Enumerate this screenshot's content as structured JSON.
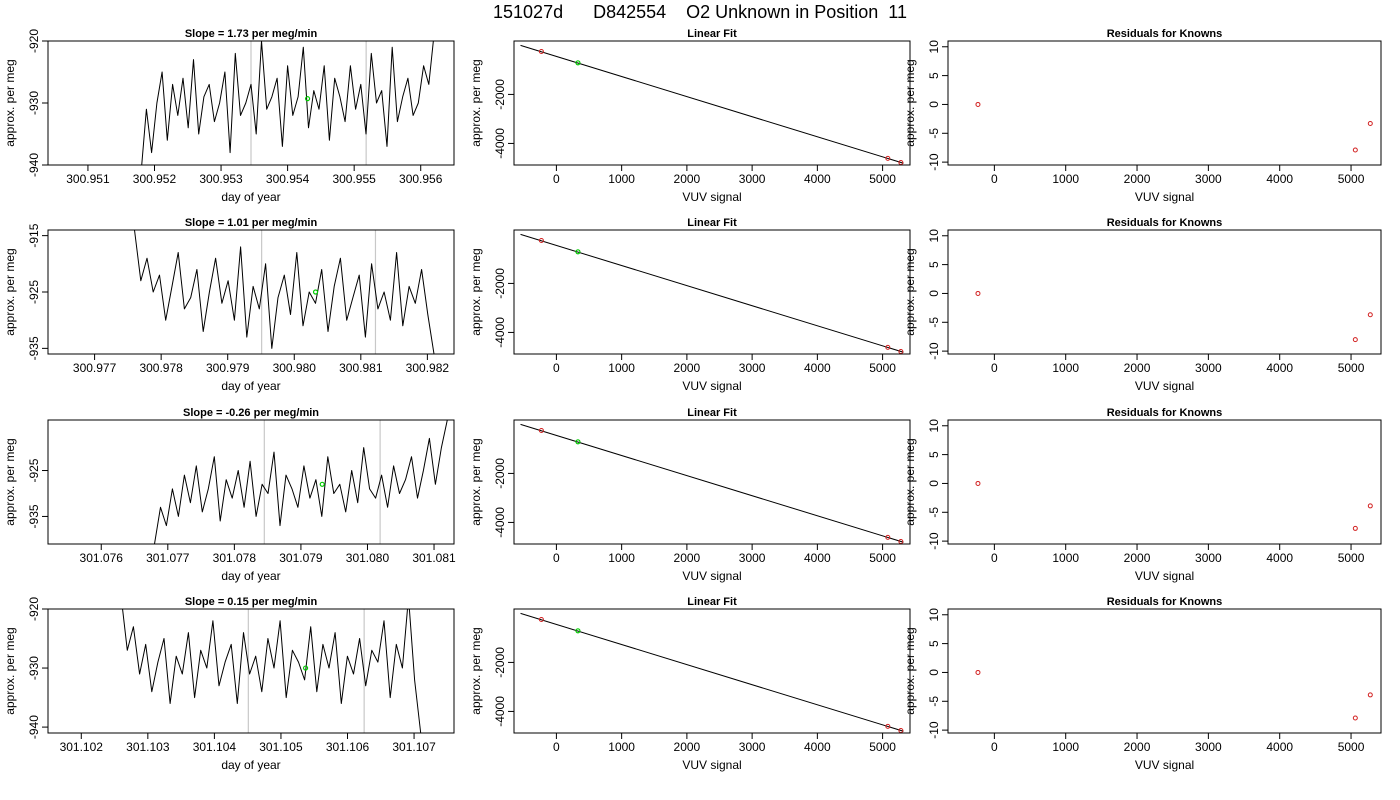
{
  "main_title": "151027d      D842554    O2 Unknown in Position  11",
  "chart_data": [
    {
      "type": "line",
      "title": "Slope =  1.73  per meg/min",
      "xlabel": "day of year",
      "ylabel": "approx. per meg",
      "xlim": [
        300.9504,
        300.9565
      ],
      "ylim": [
        -940,
        -920
      ],
      "xticks": [
        "300.951",
        "300.952",
        "300.953",
        "300.954",
        "300.955",
        "300.956"
      ],
      "yticks": [
        "-940",
        "-930",
        "-920"
      ],
      "vlines": [
        300.95345,
        300.95518
      ],
      "highlight": {
        "x": 300.9543,
        "y": -929.3,
        "color": "#00cc00"
      },
      "series": [
        {
          "x_start": 300.9518,
          "x_end": 300.9562,
          "values": [
            -941,
            -931,
            -938,
            -930,
            -925,
            -936,
            -927,
            -932,
            -926,
            -934,
            -923,
            -935,
            -929,
            -927,
            -933,
            -930,
            -925,
            -938,
            -922,
            -932,
            -930,
            -927,
            -935,
            -920,
            -931,
            -929,
            -926,
            -937,
            -924,
            -932,
            -929,
            -921,
            -934,
            -928,
            -931,
            -924,
            -936,
            -926,
            -929,
            -933,
            -924,
            -931,
            -927,
            -935,
            -922,
            -930,
            -928,
            -937,
            -921,
            -933,
            -929,
            -926,
            -932,
            -930,
            -924,
            -927,
            -919
          ]
        }
      ]
    },
    {
      "type": "scatter",
      "title": "Linear Fit",
      "xlabel": "VUV signal",
      "ylabel": "approx. per meg",
      "xlim": [
        -650,
        5420
      ],
      "ylim": [
        -4880,
        180
      ],
      "xticks": [
        "0",
        "1000",
        "2000",
        "3000",
        "4000",
        "5000"
      ],
      "yticks": [
        "-2000",
        "-4000"
      ],
      "points_x": [
        -230,
        5080,
        5280
      ],
      "points_y": [
        -250,
        -4610,
        -4780
      ],
      "unknown": {
        "x": 330,
        "y": -710
      },
      "line": {
        "x1": -550,
        "y1": 0,
        "x2": 5320,
        "y2": -4810
      }
    },
    {
      "type": "scatter",
      "title": "Residuals for Knowns",
      "xlabel": "VUV signal",
      "ylabel": "approx. per meg",
      "xlim": [
        -650,
        5420
      ],
      "ylim": [
        -10.5,
        11
      ],
      "xticks": [
        "0",
        "1000",
        "2000",
        "3000",
        "4000",
        "5000"
      ],
      "yticks": [
        "-10",
        "-5",
        "0",
        "5",
        "10"
      ],
      "points_x": [
        -230,
        5060,
        5270
      ],
      "points_y": [
        0,
        -7.9,
        -3.3
      ]
    },
    {
      "type": "line",
      "title": "Slope =  1.01  per meg/min",
      "xlabel": "day of year",
      "ylabel": "approx. per meg",
      "xlim": [
        300.9763,
        300.9824
      ],
      "ylim": [
        -936,
        -914
      ],
      "xticks": [
        "300.977",
        "300.978",
        "300.979",
        "300.980",
        "300.981",
        "300.982"
      ],
      "yticks": [
        "-935",
        "-925",
        "-915"
      ],
      "vlines": [
        300.97951,
        300.98122
      ],
      "highlight": {
        "x": 300.98032,
        "y": -925,
        "color": "#00cc00"
      },
      "series": [
        {
          "x_start": 300.9776,
          "x_end": 300.9821,
          "values": [
            -914,
            -923,
            -919,
            -925,
            -922,
            -930,
            -924,
            -918,
            -928,
            -926,
            -921,
            -932,
            -925,
            -919,
            -927,
            -923,
            -930,
            -917,
            -933,
            -924,
            -928,
            -920,
            -935,
            -926,
            -922,
            -929,
            -918,
            -931,
            -925,
            -927,
            -921,
            -932,
            -924,
            -919,
            -930,
            -926,
            -922,
            -933,
            -920,
            -928,
            -925,
            -930,
            -918,
            -931,
            -924,
            -927,
            -921,
            -929,
            -936
          ]
        }
      ]
    },
    {
      "type": "scatter",
      "title": "Linear Fit",
      "xlabel": "VUV signal",
      "ylabel": "approx. per meg",
      "xlim": [
        -650,
        5420
      ],
      "ylim": [
        -4880,
        180
      ],
      "xticks": [
        "0",
        "1000",
        "2000",
        "3000",
        "4000",
        "5000"
      ],
      "yticks": [
        "-2000",
        "-4000"
      ],
      "points_x": [
        -230,
        5080,
        5280
      ],
      "points_y": [
        -250,
        -4610,
        -4780
      ],
      "unknown": {
        "x": 330,
        "y": -710
      },
      "line": {
        "x1": -550,
        "y1": 0,
        "x2": 5320,
        "y2": -4810
      }
    },
    {
      "type": "scatter",
      "title": "Residuals for Knowns",
      "xlabel": "VUV signal",
      "ylabel": "approx. per meg",
      "xlim": [
        -650,
        5420
      ],
      "ylim": [
        -10.5,
        11
      ],
      "xticks": [
        "0",
        "1000",
        "2000",
        "3000",
        "4000",
        "5000"
      ],
      "yticks": [
        "-10",
        "-5",
        "0",
        "5",
        "10"
      ],
      "points_x": [
        -230,
        5060,
        5270
      ],
      "points_y": [
        0,
        -8.0,
        -3.7
      ]
    },
    {
      "type": "line",
      "title": "Slope =  -0.26  per meg/min",
      "xlabel": "day of year",
      "ylabel": "approx. per meg",
      "xlim": [
        301.0752,
        301.0813
      ],
      "ylim": [
        -941,
        -914
      ],
      "xticks": [
        "301.076",
        "301.077",
        "301.078",
        "301.079",
        "301.080",
        "301.081"
      ],
      "yticks": [
        "-935",
        "-925"
      ],
      "vlines": [
        301.07845,
        301.08019
      ],
      "highlight": {
        "x": 301.07932,
        "y": -928,
        "color": "#00cc00"
      },
      "series": [
        {
          "x_start": 301.0768,
          "x_end": 301.0812,
          "values": [
            -941,
            -933,
            -937,
            -929,
            -935,
            -926,
            -932,
            -924,
            -934,
            -929,
            -922,
            -936,
            -927,
            -931,
            -925,
            -933,
            -923,
            -935,
            -928,
            -930,
            -921,
            -937,
            -926,
            -929,
            -933,
            -924,
            -931,
            -927,
            -935,
            -922,
            -930,
            -928,
            -934,
            -925,
            -932,
            -920,
            -929,
            -931,
            -926,
            -933,
            -924,
            -930,
            -927,
            -922,
            -931,
            -925,
            -918,
            -928,
            -920,
            -914
          ]
        }
      ]
    },
    {
      "type": "scatter",
      "title": "Linear Fit",
      "xlabel": "VUV signal",
      "ylabel": "approx. per meg",
      "xlim": [
        -650,
        5420
      ],
      "ylim": [
        -4880,
        180
      ],
      "xticks": [
        "0",
        "1000",
        "2000",
        "3000",
        "4000",
        "5000"
      ],
      "yticks": [
        "-2000",
        "-4000"
      ],
      "points_x": [
        -230,
        5080,
        5280
      ],
      "points_y": [
        -250,
        -4610,
        -4780
      ],
      "unknown": {
        "x": 330,
        "y": -710
      },
      "line": {
        "x1": -550,
        "y1": 0,
        "x2": 5320,
        "y2": -4810
      }
    },
    {
      "type": "scatter",
      "title": "Residuals for Knowns",
      "xlabel": "VUV signal",
      "ylabel": "approx. per meg",
      "xlim": [
        -650,
        5420
      ],
      "ylim": [
        -10.5,
        11
      ],
      "xticks": [
        "0",
        "1000",
        "2000",
        "3000",
        "4000",
        "5000"
      ],
      "yticks": [
        "-10",
        "-5",
        "0",
        "5",
        "10"
      ],
      "points_x": [
        -230,
        5060,
        5270
      ],
      "points_y": [
        0,
        -7.8,
        -3.9
      ]
    },
    {
      "type": "line",
      "title": "Slope =  0.15  per meg/min",
      "xlabel": "day of year",
      "ylabel": "approx. per meg",
      "xlim": [
        301.1015,
        301.1076
      ],
      "ylim": [
        -941,
        -920
      ],
      "xticks": [
        "301.102",
        "301.103",
        "301.104",
        "301.105",
        "301.106",
        "301.107"
      ],
      "yticks": [
        "-940",
        "-930",
        "-920"
      ],
      "vlines": [
        301.10451,
        301.10625
      ],
      "highlight": {
        "x": 301.10537,
        "y": -930,
        "color": "#00cc00"
      },
      "series": [
        {
          "x_start": 301.1026,
          "x_end": 301.1071,
          "values": [
            -918,
            -927,
            -923,
            -931,
            -926,
            -934,
            -929,
            -925,
            -936,
            -928,
            -931,
            -924,
            -935,
            -927,
            -930,
            -922,
            -933,
            -929,
            -926,
            -936,
            -924,
            -931,
            -928,
            -934,
            -925,
            -930,
            -922,
            -935,
            -927,
            -929,
            -932,
            -923,
            -934,
            -926,
            -930,
            -924,
            -936,
            -928,
            -931,
            -925,
            -933,
            -927,
            -929,
            -922,
            -935,
            -926,
            -930,
            -918,
            -932,
            -941
          ]
        }
      ]
    },
    {
      "type": "scatter",
      "title": "Linear Fit",
      "xlabel": "VUV signal",
      "ylabel": "approx. per meg",
      "xlim": [
        -650,
        5420
      ],
      "ylim": [
        -4880,
        180
      ],
      "xticks": [
        "0",
        "1000",
        "2000",
        "3000",
        "4000",
        "5000"
      ],
      "yticks": [
        "-2000",
        "-4000"
      ],
      "points_x": [
        -230,
        5080,
        5280
      ],
      "points_y": [
        -250,
        -4610,
        -4780
      ],
      "unknown": {
        "x": 330,
        "y": -710
      },
      "line": {
        "x1": -550,
        "y1": 0,
        "x2": 5320,
        "y2": -4810
      }
    },
    {
      "type": "scatter",
      "title": "Residuals for Knowns",
      "xlabel": "VUV signal",
      "ylabel": "approx. per meg",
      "xlim": [
        -650,
        5420
      ],
      "ylim": [
        -10.5,
        11
      ],
      "xticks": [
        "0",
        "1000",
        "2000",
        "3000",
        "4000",
        "5000"
      ],
      "yticks": [
        "-10",
        "-5",
        "0",
        "5",
        "10"
      ],
      "points_x": [
        -230,
        5060,
        5270
      ],
      "points_y": [
        0,
        -7.9,
        -3.9
      ]
    }
  ]
}
